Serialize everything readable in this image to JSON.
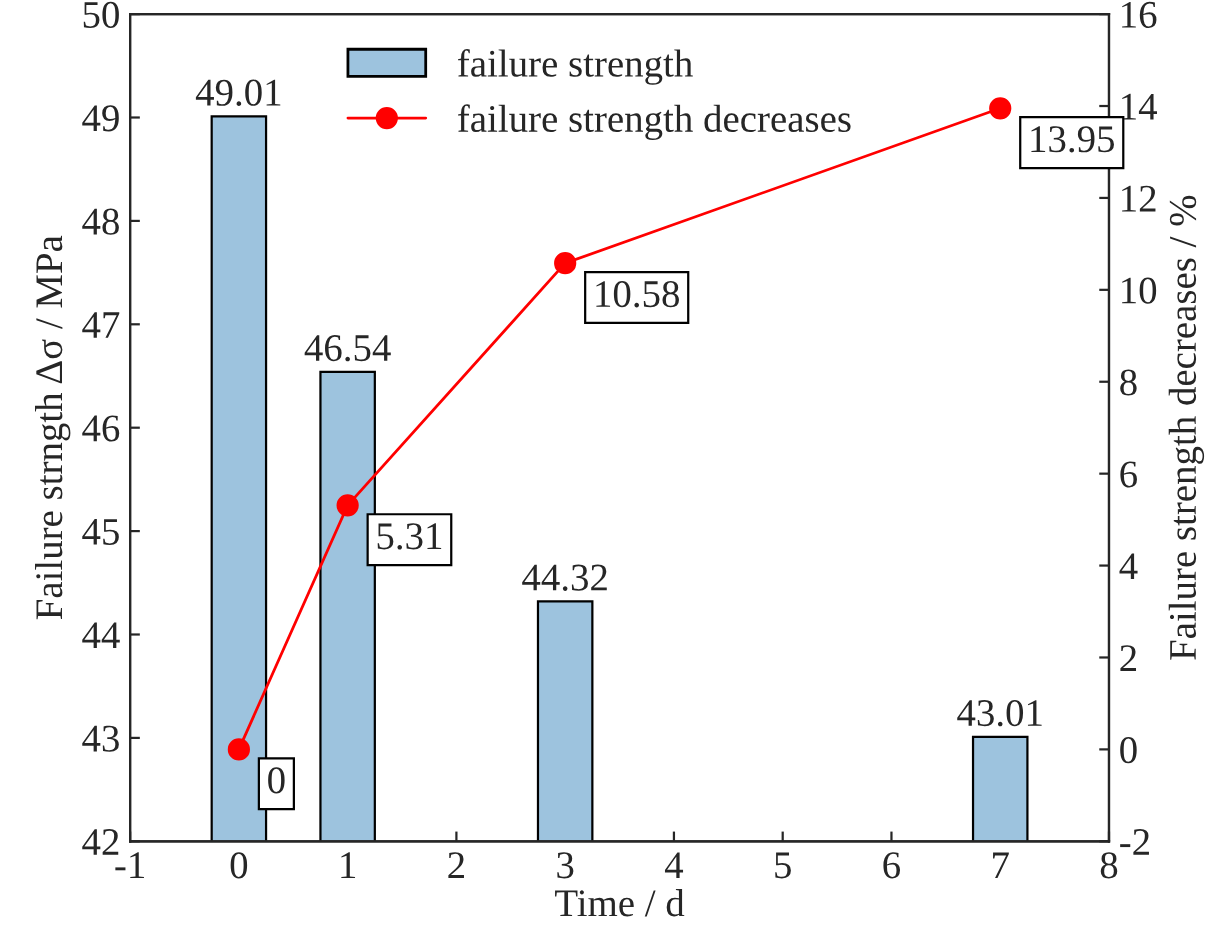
{
  "chart_data": {
    "type": "bar",
    "xlabel": "Time / d",
    "ylabel": "Failure strngth Δσ / MPa",
    "y2label": "Failure strength decreases / %",
    "x": [
      0,
      1,
      3,
      7
    ],
    "series": [
      {
        "name": "failure strength",
        "color": "#9dc3de",
        "values": [
          49.01,
          46.54,
          44.32,
          43.01
        ]
      },
      {
        "name": "failure strength decreases",
        "type": "line",
        "axis": "y2",
        "color": "#ff0000",
        "marker": "circle",
        "line_style": "solid",
        "values": [
          0,
          5.31,
          10.58,
          13.95
        ]
      }
    ],
    "xlim": [
      -1,
      8
    ],
    "xticks": [
      -1,
      0,
      1,
      2,
      3,
      4,
      5,
      6,
      7,
      8
    ],
    "ylim": [
      42,
      50
    ],
    "yticks": [
      42,
      43,
      44,
      45,
      46,
      47,
      48,
      49,
      50
    ],
    "y2lim": [
      -2,
      16
    ],
    "y2ticks": [
      -2,
      0,
      2,
      4,
      6,
      8,
      10,
      12,
      14,
      16
    ],
    "data_labels": true,
    "legend": "top",
    "grid": false
  }
}
